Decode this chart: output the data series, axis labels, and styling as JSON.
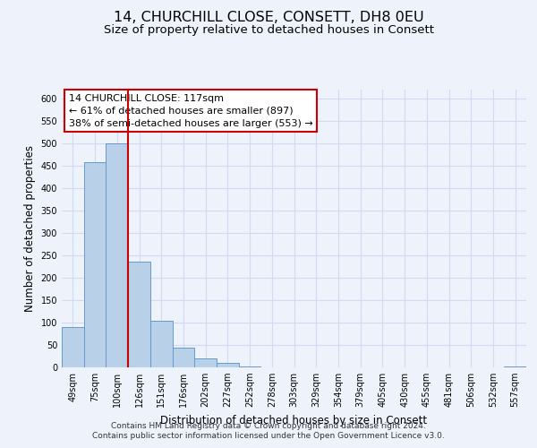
{
  "title": "14, CHURCHILL CLOSE, CONSETT, DH8 0EU",
  "subtitle": "Size of property relative to detached houses in Consett",
  "xlabel": "Distribution of detached houses by size in Consett",
  "ylabel": "Number of detached properties",
  "bar_labels": [
    "49sqm",
    "75sqm",
    "100sqm",
    "126sqm",
    "151sqm",
    "176sqm",
    "202sqm",
    "227sqm",
    "252sqm",
    "278sqm",
    "303sqm",
    "329sqm",
    "354sqm",
    "379sqm",
    "405sqm",
    "430sqm",
    "455sqm",
    "481sqm",
    "506sqm",
    "532sqm",
    "557sqm"
  ],
  "bar_values": [
    90,
    458,
    501,
    237,
    105,
    45,
    20,
    10,
    2,
    0,
    0,
    0,
    0,
    0,
    0,
    0,
    0,
    0,
    0,
    0,
    2
  ],
  "bar_color": "#b8d0e8",
  "bar_edge_color": "#6699cc",
  "annotation_box_text_line1": "14 CHURCHILL CLOSE: 117sqm",
  "annotation_box_text_line2": "← 61% of detached houses are smaller (897)",
  "annotation_box_text_line3": "38% of semi-detached houses are larger (553) →",
  "annotation_box_color": "#ffffff",
  "annotation_box_edge_color": "#cc0000",
  "red_line_x": 2.5,
  "ylim": [
    0,
    620
  ],
  "yticks": [
    0,
    50,
    100,
    150,
    200,
    250,
    300,
    350,
    400,
    450,
    500,
    550,
    600
  ],
  "footer_line1": "Contains HM Land Registry data © Crown copyright and database right 2024.",
  "footer_line2": "Contains public sector information licensed under the Open Government Licence v3.0.",
  "background_color": "#eef2fb",
  "grid_color": "#d0daf0",
  "title_fontsize": 11.5,
  "subtitle_fontsize": 9.5,
  "axis_label_fontsize": 8.5,
  "tick_fontsize": 7,
  "footer_fontsize": 6.5,
  "annotation_fontsize": 8
}
